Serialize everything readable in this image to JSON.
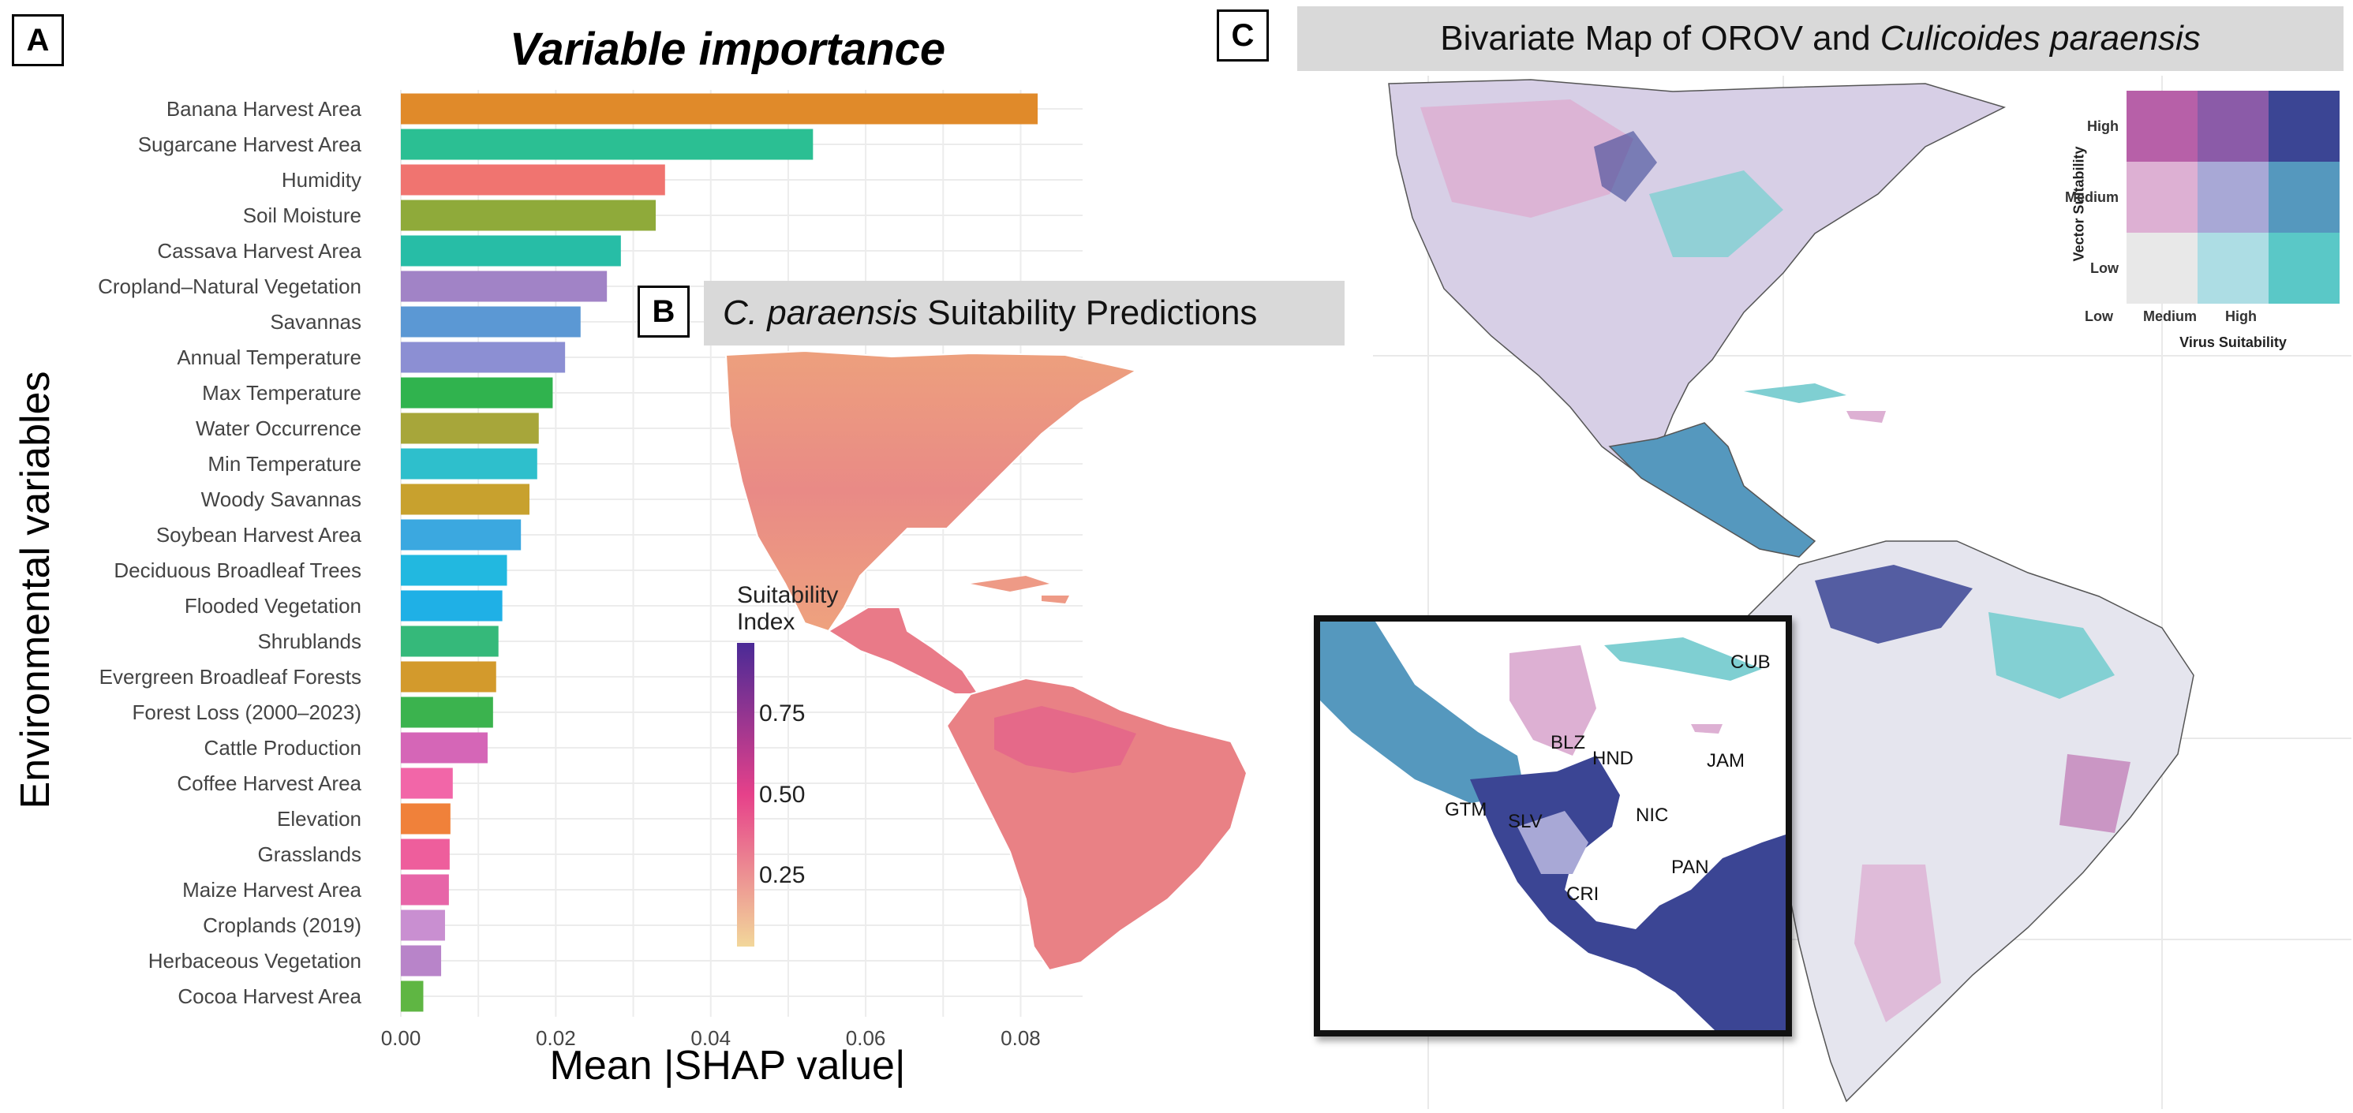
{
  "panel_a": {
    "letter": "A",
    "chart_data": {
      "type": "bar",
      "orientation": "horizontal",
      "title": "Variable importance",
      "xlabel": "Mean |SHAP value|",
      "ylabel": "Environmental variables",
      "xlim": [
        0,
        0.088
      ],
      "xticks": [
        "0.00",
        "0.02",
        "0.04",
        "0.06",
        "0.08"
      ],
      "grid": true,
      "categories": [
        "Banana Harvest Area",
        "Sugarcane Harvest Area",
        "Humidity",
        "Soil Moisture",
        "Cassava Harvest Area",
        "Cropland–Natural Vegetation",
        "Savannas",
        "Annual Temperature",
        "Max Temperature",
        "Water Occurrence",
        "Min Temperature",
        "Woody Savannas",
        "Soybean Harvest Area",
        "Deciduous Broadleaf Trees",
        "Flooded Vegetation",
        "Shrublands",
        "Evergreen Broadleaf Forests",
        "Forest Loss (2000–2023)",
        "Cattle Production",
        "Coffee Harvest Area",
        "Elevation",
        "Grasslands",
        "Maize Harvest Area",
        "Croplands (2019)",
        "Herbaceous Vegetation",
        "Cocoa Harvest Area"
      ],
      "values": [
        0.0822,
        0.0532,
        0.0341,
        0.0329,
        0.0284,
        0.0266,
        0.0232,
        0.0212,
        0.0196,
        0.0178,
        0.0176,
        0.0166,
        0.0155,
        0.0137,
        0.0131,
        0.0126,
        0.0123,
        0.0119,
        0.0112,
        0.0067,
        0.0064,
        0.0063,
        0.0062,
        0.0057,
        0.0052,
        0.0029
      ],
      "colors": [
        "#E08A2A",
        "#2BBF93",
        "#F07470",
        "#8FAA3A",
        "#27BDA6",
        "#A183C6",
        "#5B98D4",
        "#8C8FD3",
        "#30B34E",
        "#A7A63A",
        "#2EBFCC",
        "#C8A12E",
        "#3BA8E0",
        "#22B8E0",
        "#1FB0E6",
        "#35B97A",
        "#D39A2C",
        "#3BB34E",
        "#D566B7",
        "#F266A8",
        "#F0813A",
        "#EE5E9C",
        "#E765A8",
        "#C98FD1",
        "#B884C9",
        "#5FB643"
      ]
    }
  },
  "panel_b": {
    "letter": "B",
    "title_italic": "C. paraensis",
    "title_rest": " Suitability Predictions",
    "legend_title_1": "Suitability",
    "legend_title_2": "Index",
    "legend_ticks": [
      "0.75",
      "0.50",
      "0.25"
    ],
    "legend_tick_values": [
      0.75,
      0.5,
      0.25
    ],
    "legend_range": [
      0.03,
      0.97
    ],
    "colors": {
      "low": "#F2D79A",
      "mid": "#E6418A",
      "high": "#4A2A96"
    }
  },
  "panel_c": {
    "letter": "C",
    "title_rest": "Bivariate Map of OROV and ",
    "title_italic": "Culicoides paraensis",
    "legend": {
      "y_title": "Vector Suitability",
      "x_title": "Virus Suitability",
      "y_levels": [
        "High",
        "Medium",
        "Low"
      ],
      "x_levels": [
        "Low",
        "Medium",
        "High"
      ],
      "cells": [
        [
          "#B760A8",
          "#8B5BA8",
          "#3B4594"
        ],
        [
          "#DDB0D3",
          "#A8A8D6",
          "#5598BE"
        ],
        [
          "#E8E8E8",
          "#ADDDE4",
          "#5AC8C7"
        ]
      ]
    },
    "inset_labels": [
      "CUB",
      "BLZ",
      "HND",
      "JAM",
      "GTM",
      "SLV",
      "NIC",
      "PAN",
      "CRI"
    ]
  }
}
